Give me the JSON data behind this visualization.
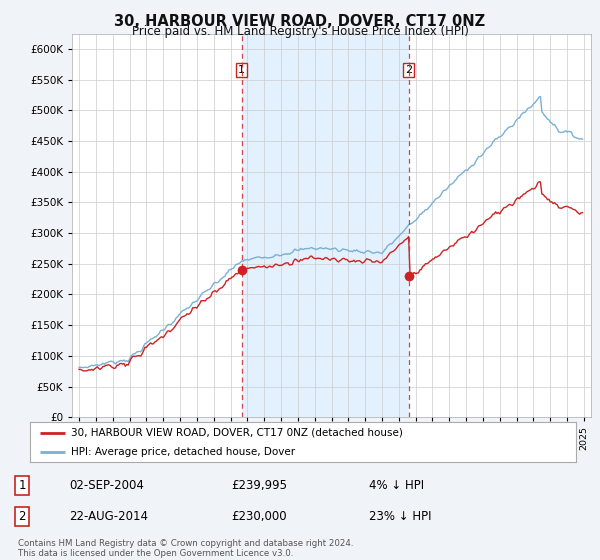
{
  "title": "30, HARBOUR VIEW ROAD, DOVER, CT17 0NZ",
  "subtitle": "Price paid vs. HM Land Registry's House Price Index (HPI)",
  "ytick_values": [
    0,
    50000,
    100000,
    150000,
    200000,
    250000,
    300000,
    350000,
    400000,
    450000,
    500000,
    550000,
    600000
  ],
  "ylim": [
    0,
    625000
  ],
  "hpi_color": "#7ab0d4",
  "price_color": "#cc2222",
  "vline_color": "#cc3333",
  "shade_color": "#ddeeff",
  "sale1_year": 2004,
  "sale1_month": 9,
  "sale1_price": 239995,
  "sale2_year": 2014,
  "sale2_month": 8,
  "sale2_price": 230000,
  "legend_label1": "30, HARBOUR VIEW ROAD, DOVER, CT17 0NZ (detached house)",
  "legend_label2": "HPI: Average price, detached house, Dover",
  "sale1_date": "02-SEP-2004",
  "sale2_date": "22-AUG-2014",
  "sale1_pct": "4%",
  "sale2_pct": "23%",
  "footnote": "Contains HM Land Registry data © Crown copyright and database right 2024.\nThis data is licensed under the Open Government Licence v3.0.",
  "background_color": "#f0f4f8",
  "plot_bg_color": "#ffffff",
  "x_start_year": 1995,
  "x_end_year": 2025
}
